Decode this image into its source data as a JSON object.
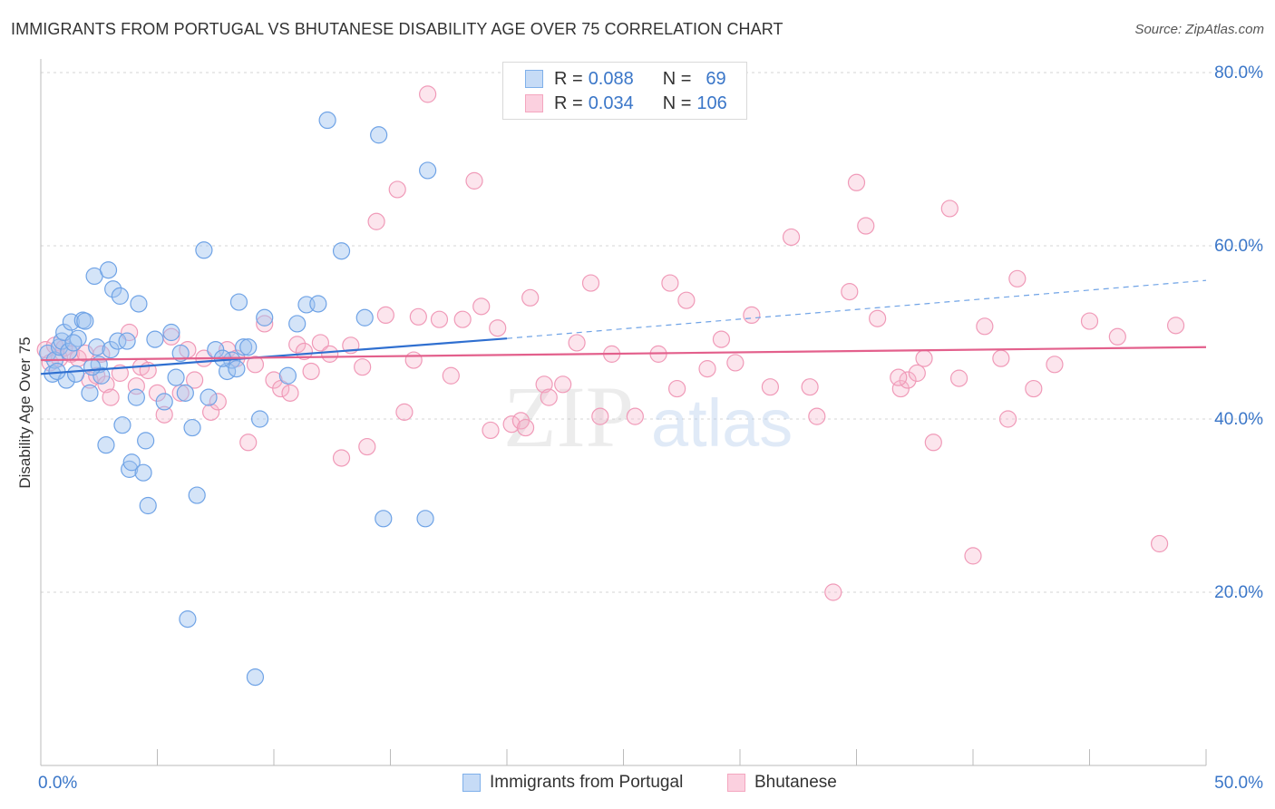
{
  "title": "IMMIGRANTS FROM PORTUGAL VS BHUTANESE DISABILITY AGE OVER 75 CORRELATION CHART",
  "source": "Source: ZipAtlas.com",
  "watermark": {
    "zip": "ZIP",
    "atlas": "atlas"
  },
  "legend_top": [
    {
      "r_label": "R =",
      "r_value": "0.088",
      "n_label": "N =",
      "n_value": "69",
      "color": "#7fb0ea"
    },
    {
      "r_label": "R =",
      "r_value": "0.034",
      "n_label": "N =",
      "n_value": "106",
      "color": "#f4a6bf"
    }
  ],
  "chart_data": {
    "type": "scatter",
    "title": "IMMIGRANTS FROM PORTUGAL VS BHUTANESE DISABILITY AGE OVER 75 CORRELATION CHART",
    "xlabel": "",
    "ylabel": "Disability Age Over 75",
    "xlim": [
      0,
      50
    ],
    "ylim": [
      0,
      85
    ],
    "x_tick_labels": [
      "0.0%",
      "50.0%"
    ],
    "y_ticks": [
      20,
      40,
      60,
      80
    ],
    "y_tick_labels": [
      "20.0%",
      "40.0%",
      "60.0%",
      "80.0%"
    ],
    "grid": true,
    "legend_position": "bottom",
    "series": [
      {
        "name": "Immigrants from Portugal",
        "color": "#6fa3e6",
        "line_color": "#2f6fd0",
        "trend": {
          "x0": 0.0,
          "y0": 45.2,
          "x1": 20.0,
          "y1": 49.3,
          "dash_x1": 50.0,
          "dash_y1": 56.0
        },
        "points": [
          [
            0.3,
            47.6
          ],
          [
            0.5,
            45.2
          ],
          [
            0.6,
            46.8
          ],
          [
            0.8,
            48.3
          ],
          [
            0.9,
            49.0
          ],
          [
            1.0,
            50.0
          ],
          [
            1.1,
            44.5
          ],
          [
            1.2,
            47.8
          ],
          [
            1.3,
            51.2
          ],
          [
            1.5,
            45.2
          ],
          [
            1.6,
            49.3
          ],
          [
            1.8,
            51.4
          ],
          [
            1.9,
            51.3
          ],
          [
            2.1,
            43.0
          ],
          [
            2.3,
            56.5
          ],
          [
            2.4,
            48.3
          ],
          [
            2.5,
            46.3
          ],
          [
            2.6,
            45.0
          ],
          [
            2.8,
            37.0
          ],
          [
            2.9,
            57.2
          ],
          [
            3.0,
            48.0
          ],
          [
            3.1,
            55.0
          ],
          [
            3.3,
            49.0
          ],
          [
            3.4,
            54.2
          ],
          [
            3.5,
            39.3
          ],
          [
            3.7,
            49.0
          ],
          [
            3.8,
            34.2
          ],
          [
            3.9,
            35.0
          ],
          [
            4.1,
            42.5
          ],
          [
            4.2,
            53.3
          ],
          [
            4.4,
            33.8
          ],
          [
            4.5,
            37.5
          ],
          [
            4.6,
            30.0
          ],
          [
            5.6,
            50.0
          ],
          [
            5.8,
            44.8
          ],
          [
            6.0,
            47.6
          ],
          [
            6.3,
            16.9
          ],
          [
            6.5,
            39.0
          ],
          [
            6.7,
            31.2
          ],
          [
            7.0,
            59.5
          ],
          [
            7.2,
            42.5
          ],
          [
            7.5,
            48.0
          ],
          [
            8.0,
            45.5
          ],
          [
            8.2,
            46.8
          ],
          [
            8.5,
            53.5
          ],
          [
            8.7,
            48.3
          ],
          [
            8.9,
            48.3
          ],
          [
            9.2,
            10.2
          ],
          [
            9.4,
            40.0
          ],
          [
            9.6,
            51.7
          ],
          [
            10.6,
            45.0
          ],
          [
            11.0,
            51.0
          ],
          [
            11.4,
            53.2
          ],
          [
            11.9,
            53.3
          ],
          [
            12.3,
            74.5
          ],
          [
            12.9,
            59.4
          ],
          [
            13.9,
            51.7
          ],
          [
            14.5,
            72.8
          ],
          [
            14.7,
            28.5
          ],
          [
            16.5,
            28.5
          ],
          [
            16.6,
            68.7
          ],
          [
            7.8,
            47.0
          ],
          [
            0.7,
            45.5
          ],
          [
            1.4,
            48.8
          ],
          [
            2.2,
            46.0
          ],
          [
            4.9,
            49.2
          ],
          [
            5.3,
            42.0
          ],
          [
            6.2,
            43.0
          ],
          [
            8.4,
            45.8
          ]
        ]
      },
      {
        "name": "Bhutanese",
        "color": "#f09ab8",
        "line_color": "#e3608c",
        "trend": {
          "x0": 0.0,
          "y0": 46.8,
          "x1": 50.0,
          "y1": 48.3
        },
        "points": [
          [
            0.2,
            48.0
          ],
          [
            0.4,
            46.5
          ],
          [
            0.6,
            48.5
          ],
          [
            0.8,
            47.0
          ],
          [
            1.0,
            48.2
          ],
          [
            1.3,
            47.5
          ],
          [
            1.6,
            47.0
          ],
          [
            1.9,
            47.6
          ],
          [
            2.1,
            44.5
          ],
          [
            2.4,
            45.0
          ],
          [
            2.6,
            47.5
          ],
          [
            2.8,
            44.0
          ],
          [
            3.0,
            42.5
          ],
          [
            3.4,
            45.3
          ],
          [
            3.8,
            50.0
          ],
          [
            4.1,
            43.8
          ],
          [
            4.3,
            46.0
          ],
          [
            4.6,
            45.6
          ],
          [
            5.0,
            43.0
          ],
          [
            5.3,
            40.5
          ],
          [
            5.6,
            49.5
          ],
          [
            6.0,
            43.0
          ],
          [
            6.3,
            48.0
          ],
          [
            6.6,
            44.5
          ],
          [
            7.0,
            47.0
          ],
          [
            7.3,
            40.8
          ],
          [
            7.6,
            42.0
          ],
          [
            8.0,
            48.0
          ],
          [
            8.4,
            47.0
          ],
          [
            8.9,
            37.3
          ],
          [
            9.2,
            46.3
          ],
          [
            9.6,
            51.0
          ],
          [
            10.0,
            44.5
          ],
          [
            10.3,
            43.5
          ],
          [
            10.7,
            43.0
          ],
          [
            11.0,
            48.6
          ],
          [
            11.3,
            47.8
          ],
          [
            11.6,
            45.5
          ],
          [
            12.0,
            48.8
          ],
          [
            12.4,
            47.5
          ],
          [
            12.9,
            35.5
          ],
          [
            13.3,
            48.5
          ],
          [
            13.8,
            46.0
          ],
          [
            14.4,
            62.8
          ],
          [
            14.8,
            52.0
          ],
          [
            15.3,
            66.5
          ],
          [
            15.6,
            40.8
          ],
          [
            16.0,
            46.8
          ],
          [
            16.2,
            51.8
          ],
          [
            16.6,
            77.5
          ],
          [
            17.1,
            51.5
          ],
          [
            17.6,
            45.0
          ],
          [
            18.1,
            51.5
          ],
          [
            18.6,
            67.5
          ],
          [
            18.9,
            53.0
          ],
          [
            19.3,
            38.7
          ],
          [
            19.6,
            50.5
          ],
          [
            20.2,
            39.4
          ],
          [
            20.6,
            39.8
          ],
          [
            21.0,
            54.0
          ],
          [
            21.6,
            44.0
          ],
          [
            21.8,
            42.5
          ],
          [
            22.4,
            44.0
          ],
          [
            23.0,
            48.8
          ],
          [
            23.6,
            55.7
          ],
          [
            24.0,
            40.3
          ],
          [
            24.5,
            47.5
          ],
          [
            26.5,
            47.5
          ],
          [
            27.0,
            55.7
          ],
          [
            27.3,
            43.5
          ],
          [
            27.7,
            53.7
          ],
          [
            29.2,
            49.2
          ],
          [
            29.8,
            46.5
          ],
          [
            30.5,
            52.0
          ],
          [
            31.3,
            43.7
          ],
          [
            32.2,
            61.0
          ],
          [
            33.0,
            43.7
          ],
          [
            33.3,
            40.3
          ],
          [
            34.0,
            20.0
          ],
          [
            34.7,
            54.7
          ],
          [
            35.0,
            67.3
          ],
          [
            35.4,
            62.3
          ],
          [
            35.9,
            51.6
          ],
          [
            36.9,
            43.5
          ],
          [
            37.2,
            44.5
          ],
          [
            37.6,
            45.3
          ],
          [
            37.9,
            47.0
          ],
          [
            38.3,
            37.3
          ],
          [
            39.0,
            64.3
          ],
          [
            39.4,
            44.7
          ],
          [
            40.0,
            24.2
          ],
          [
            40.5,
            50.7
          ],
          [
            41.2,
            47.0
          ],
          [
            41.5,
            40.0
          ],
          [
            41.9,
            56.2
          ],
          [
            42.6,
            43.5
          ],
          [
            43.5,
            46.3
          ],
          [
            45.0,
            51.3
          ],
          [
            46.2,
            49.5
          ],
          [
            48.0,
            25.6
          ],
          [
            48.7,
            50.8
          ],
          [
            36.8,
            44.8
          ],
          [
            20.8,
            39.0
          ],
          [
            25.5,
            40.3
          ],
          [
            28.6,
            45.8
          ],
          [
            14.0,
            36.8
          ]
        ]
      }
    ]
  }
}
